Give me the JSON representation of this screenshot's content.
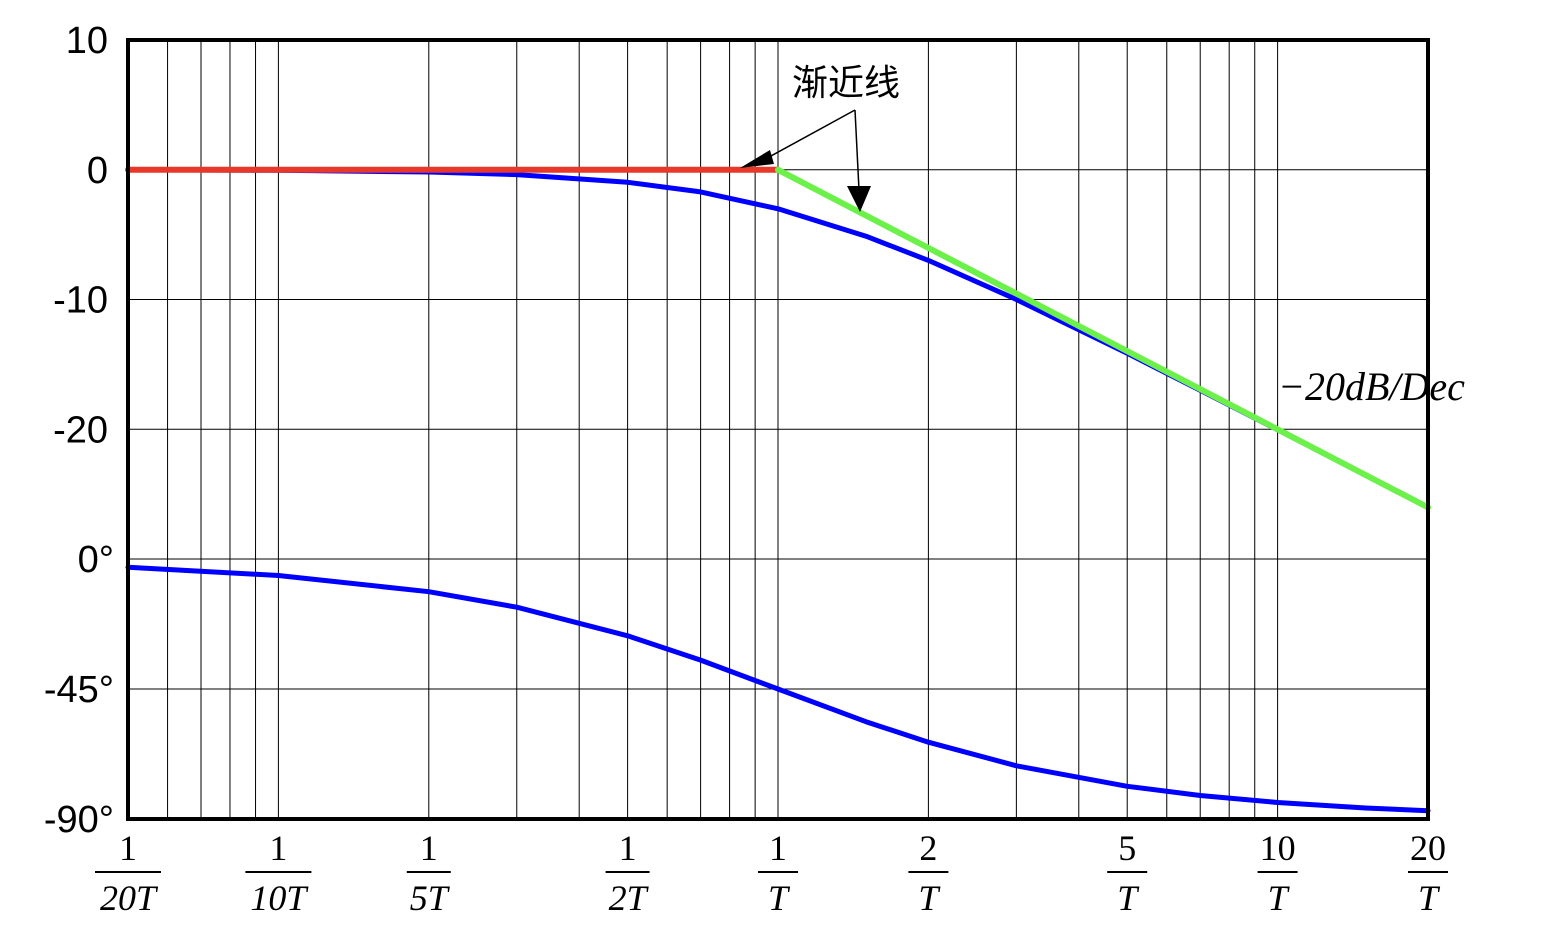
{
  "chart_data": [
    {
      "type": "line",
      "panel": "magnitude",
      "x_scale": "log",
      "xlim": [
        0.05,
        20
      ],
      "ylim": [
        -30,
        10
      ],
      "yticks": [
        {
          "value": 10,
          "label": "10"
        },
        {
          "value": 0,
          "label": "0"
        },
        {
          "value": -10,
          "label": "-10"
        },
        {
          "value": -20,
          "label": "-20"
        }
      ],
      "grid": true,
      "series": [
        {
          "role": "exact",
          "color": "#0000ff",
          "x": [
            0.05,
            0.1,
            0.2,
            0.3,
            0.5,
            0.7,
            1,
            1.5,
            2,
            3,
            5,
            7,
            10,
            15,
            20
          ],
          "y": [
            0,
            -0.04,
            -0.17,
            -0.37,
            -0.97,
            -1.71,
            -3.01,
            -5.12,
            -6.99,
            -10.0,
            -14.15,
            -17.0,
            -20.04,
            -23.54,
            -26.03
          ]
        },
        {
          "role": "asymptote-flat",
          "color": "#e8382a",
          "x": [
            0.05,
            1
          ],
          "y": [
            0,
            0
          ]
        },
        {
          "role": "asymptote-slope",
          "color": "#6cf04a",
          "x": [
            1,
            20
          ],
          "y": [
            0,
            -26.02
          ]
        }
      ],
      "annotations": [
        {
          "text": "渐近线",
          "kind": "label-with-arrows"
        },
        {
          "text": "−20dB/Dec",
          "kind": "slope-label"
        }
      ]
    },
    {
      "type": "line",
      "panel": "phase",
      "x_scale": "log",
      "xlim": [
        0.05,
        20
      ],
      "ylim": [
        -90,
        0
      ],
      "yticks": [
        {
          "value": 0,
          "label": "0°"
        },
        {
          "value": -45,
          "label": "-45°"
        },
        {
          "value": -90,
          "label": "-90°"
        }
      ],
      "grid": true,
      "series": [
        {
          "role": "exact",
          "color": "#0000ff",
          "x": [
            0.05,
            0.1,
            0.2,
            0.3,
            0.5,
            0.7,
            1,
            1.5,
            2,
            3,
            5,
            7,
            10,
            15,
            20
          ],
          "y": [
            -2.86,
            -5.71,
            -11.31,
            -16.7,
            -26.57,
            -34.99,
            -45,
            -56.31,
            -63.43,
            -71.57,
            -78.69,
            -81.87,
            -84.29,
            -86.19,
            -87.14
          ]
        }
      ]
    }
  ],
  "xticks": [
    {
      "value": 0.05,
      "num": "1",
      "den": "20T"
    },
    {
      "value": 0.1,
      "num": "1",
      "den": "10T"
    },
    {
      "value": 0.2,
      "num": "1",
      "den": "5T"
    },
    {
      "value": 0.5,
      "num": "1",
      "den": "2T"
    },
    {
      "value": 1,
      "num": "1",
      "den": "T"
    },
    {
      "value": 2,
      "num": "2",
      "den": "T"
    },
    {
      "value": 5,
      "num": "5",
      "den": "T"
    },
    {
      "value": 10,
      "num": "10",
      "den": "T"
    },
    {
      "value": 20,
      "num": "20",
      "den": "T"
    }
  ]
}
